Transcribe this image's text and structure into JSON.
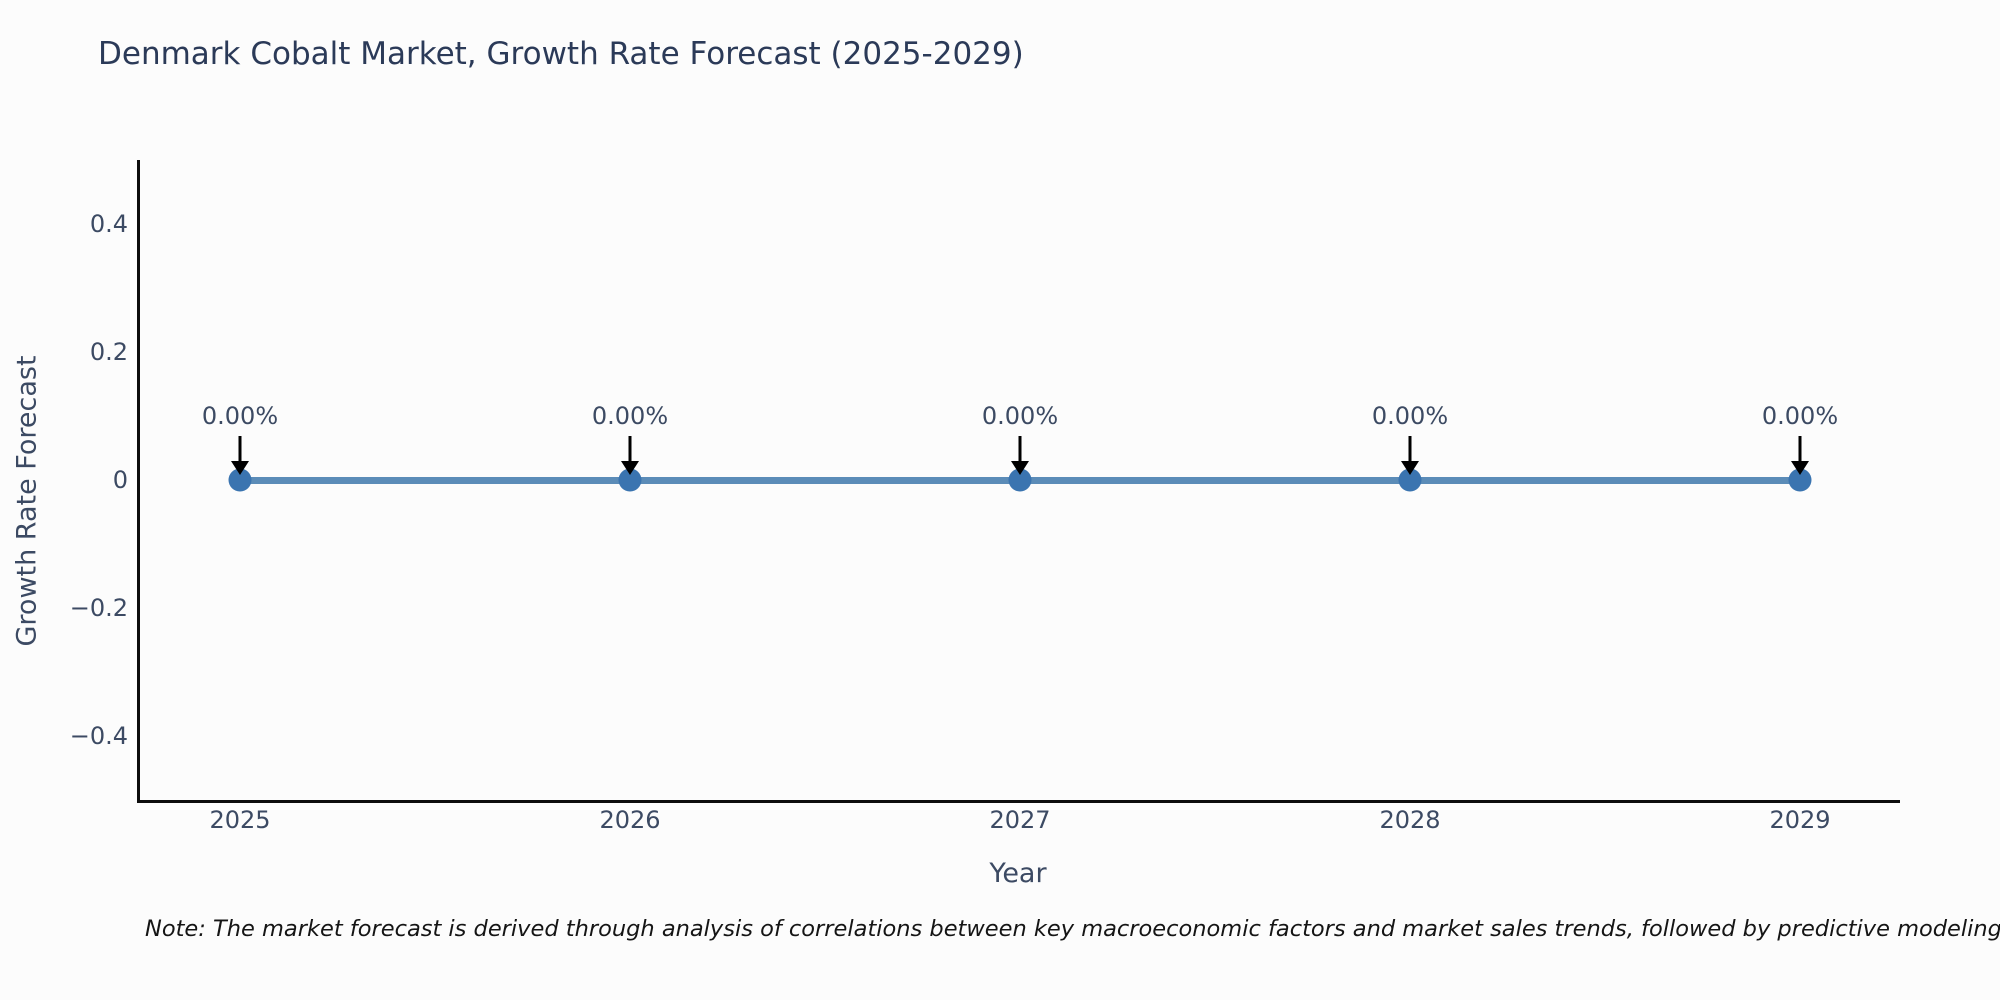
{
  "title": "Denmark Cobalt Market, Growth Rate Forecast (2025-2029)",
  "chart_data": {
    "type": "line",
    "x": [
      2025,
      2026,
      2027,
      2028,
      2029
    ],
    "series": [
      {
        "name": "Growth Rate Forecast",
        "values": [
          0,
          0,
          0,
          0,
          0
        ]
      }
    ],
    "point_labels": [
      "0.00%",
      "0.00%",
      "0.00%",
      "0.00%",
      "0.00%"
    ],
    "title": "Denmark Cobalt Market, Growth Rate Forecast (2025-2029)",
    "xlabel": "Year",
    "ylabel": "Growth Rate Forecast",
    "x_tick_labels": [
      "2025",
      "2026",
      "2027",
      "2028",
      "2029"
    ],
    "y_tick_labels": [
      "0.4",
      "0.2",
      "0",
      "−0.2",
      "−0.4"
    ],
    "y_tick_values": [
      0.4,
      0.2,
      0,
      -0.2,
      -0.4
    ],
    "ylim": [
      -0.5,
      0.5
    ],
    "grid": false,
    "legend_position": "none",
    "line_color": "#5b8cb8",
    "marker_color": "#3a74b0",
    "arrow_color": "#000000"
  },
  "footnote": "Note: The market forecast is derived through analysis of correlations between key macroeconomic factors and market sales trends, followed by predictive modeling to project future sales"
}
